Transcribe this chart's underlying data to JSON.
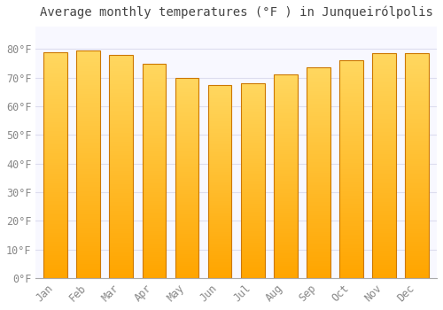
{
  "title": "Average monthly temperatures (°F ) in Junqueirólpolis",
  "months": [
    "Jan",
    "Feb",
    "Mar",
    "Apr",
    "May",
    "Jun",
    "Jul",
    "Aug",
    "Sep",
    "Oct",
    "Nov",
    "Dec"
  ],
  "values": [
    79.0,
    79.5,
    78.0,
    75.0,
    70.0,
    67.5,
    68.0,
    71.0,
    73.5,
    76.0,
    78.5,
    78.5
  ],
  "bar_color_main": "#FFA500",
  "bar_color_light": "#FFD060",
  "bar_edge_color": "#CC7700",
  "background_color": "#FFFFFF",
  "plot_bg_color": "#F8F8FF",
  "grid_color": "#DDDDEE",
  "text_color": "#888888",
  "title_color": "#444444",
  "ylim": [
    0,
    88
  ],
  "yticks": [
    0,
    10,
    20,
    30,
    40,
    50,
    60,
    70,
    80
  ],
  "title_fontsize": 10,
  "tick_fontsize": 8.5,
  "bar_width": 0.72
}
